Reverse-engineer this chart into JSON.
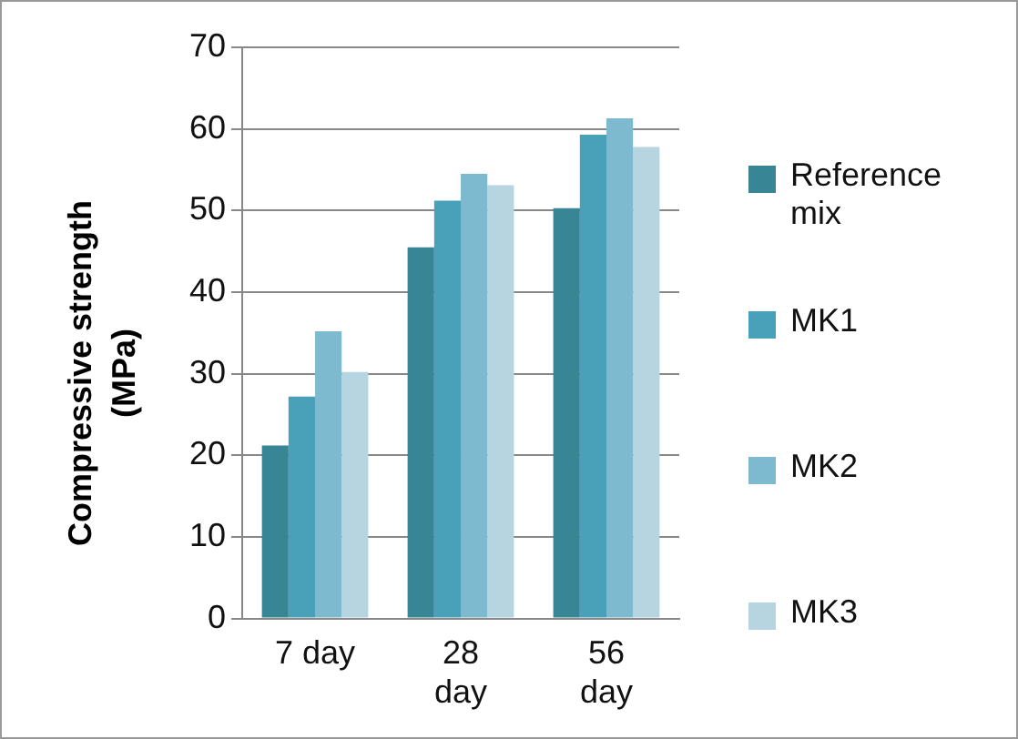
{
  "chart_data": {
    "type": "bar",
    "ylabel": "Compressive strength (MPa)",
    "categories": [
      "7 day",
      "28 day",
      "56 day"
    ],
    "series": [
      {
        "name": "Reference mix",
        "color": "#388596",
        "values": [
          21.2,
          45.5,
          50.3
        ]
      },
      {
        "name": "MK1",
        "color": "#48a1b9",
        "values": [
          27.2,
          51.2,
          59.3
        ]
      },
      {
        "name": "MK2",
        "color": "#7db9cf",
        "values": [
          35.2,
          54.5,
          61.3
        ]
      },
      {
        "name": "MK3",
        "color": "#b7d5e0",
        "values": [
          30.2,
          53.1,
          57.8
        ]
      }
    ],
    "ylim": [
      0,
      70
    ],
    "yticks": [
      0,
      10,
      20,
      30,
      40,
      50,
      60,
      70
    ],
    "grid": "y",
    "legend": "right"
  }
}
